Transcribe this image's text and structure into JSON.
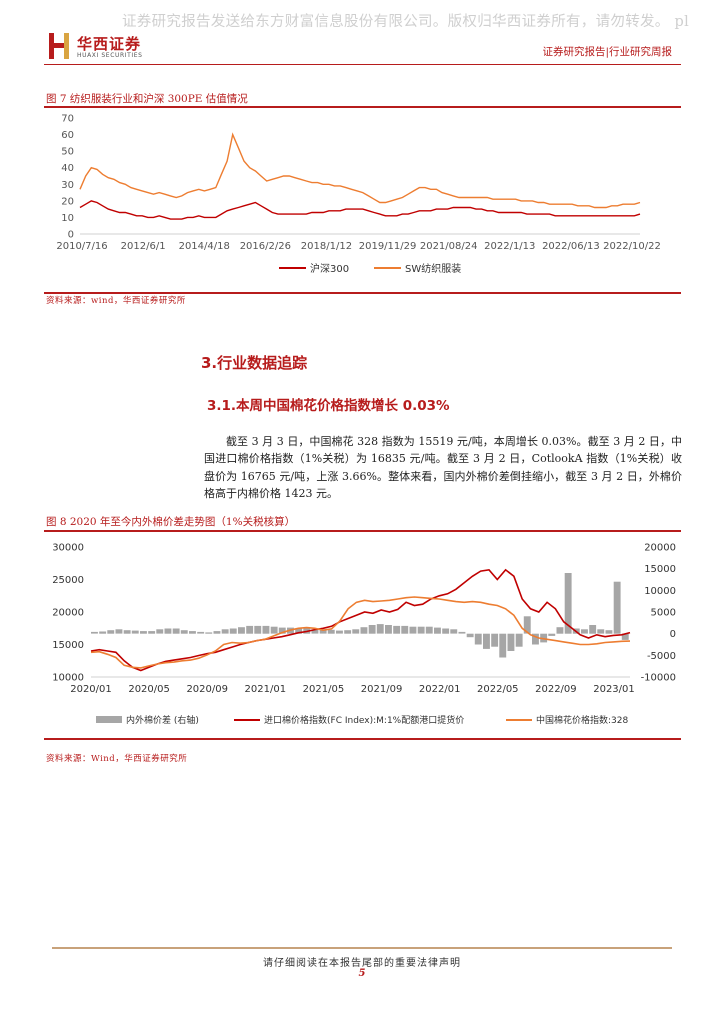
{
  "watermark": "证券研究报告发送给东方财富信息股份有限公司。版权归华西证券所有，请勿转发。 pl",
  "header": {
    "logo_cn": "华西证券",
    "logo_en": "HUAXI SECURITIES",
    "right_text": "证券研究报告|行业研究周报"
  },
  "figure7": {
    "title": "图 7  纺织服装行业和沪深 300PE 估值情况",
    "source": "资料来源：wind，华西证券研究所",
    "chart_data": {
      "type": "line",
      "title": "",
      "xlabel": "",
      "ylabel": "",
      "ylim": [
        0,
        70
      ],
      "yticks": [
        0,
        10,
        20,
        30,
        40,
        50,
        60,
        70
      ],
      "x_tick_labels": [
        "2010/7/16",
        "2012/6/1",
        "2014/4/18",
        "2016/2/26",
        "2018/1/12",
        "2019/11/29",
        "2021/08/24",
        "2022/1/13",
        "2022/06/13",
        "2022/10/22"
      ],
      "grid": false,
      "legend_placement": "bottom",
      "series": [
        {
          "name": "沪深300",
          "color": "#c00000",
          "values": [
            16,
            18,
            20,
            19,
            17,
            15,
            14,
            13,
            13,
            12,
            11,
            11,
            10,
            10,
            11,
            10,
            9,
            9,
            9,
            10,
            10,
            11,
            10,
            10,
            10,
            12,
            14,
            15,
            16,
            17,
            18,
            19,
            17,
            15,
            13,
            12,
            12,
            12,
            12,
            12,
            12,
            13,
            13,
            13,
            14,
            14,
            14,
            15,
            15,
            15,
            15,
            14,
            13,
            12,
            11,
            11,
            11,
            12,
            12,
            13,
            14,
            14,
            14,
            15,
            15,
            15,
            16,
            16,
            16,
            16,
            15,
            15,
            14,
            14,
            13,
            13,
            13,
            13,
            13,
            12,
            12,
            12,
            12,
            12,
            11,
            11,
            11,
            11,
            11,
            11,
            11,
            11,
            11,
            11,
            11,
            11,
            11,
            11,
            11,
            12
          ]
        },
        {
          "name": "SW纺织服装",
          "color": "#ed7d31",
          "values": [
            27,
            35,
            40,
            39,
            36,
            34,
            33,
            31,
            30,
            28,
            27,
            26,
            25,
            24,
            25,
            24,
            23,
            22,
            23,
            25,
            26,
            27,
            26,
            27,
            28,
            36,
            44,
            60,
            52,
            44,
            40,
            38,
            35,
            32,
            33,
            34,
            35,
            35,
            34,
            33,
            32,
            31,
            31,
            30,
            30,
            29,
            29,
            28,
            27,
            26,
            25,
            23,
            21,
            19,
            19,
            20,
            21,
            22,
            24,
            26,
            28,
            28,
            27,
            27,
            25,
            24,
            23,
            22,
            22,
            22,
            22,
            22,
            22,
            21,
            21,
            21,
            21,
            21,
            20,
            20,
            20,
            19,
            19,
            18,
            18,
            18,
            18,
            18,
            17,
            17,
            17,
            16,
            16,
            16,
            17,
            17,
            18,
            18,
            18,
            19
          ]
        }
      ]
    }
  },
  "section3": {
    "heading": "3.行业数据追踪",
    "sub_heading": "3.1.本周中国棉花价格指数增长 0.03%",
    "paragraph": "截至 3 月 3 日，中国棉花 328 指数为 15519 元/吨，本周增长 0.03%。截至 3 月 2 日，中国进口棉价格指数（1%关税）为 16835 元/吨。截至 3 月 2 日，CotlookA 指数（1%关税）收盘价为 16765 元/吨，上涨 3.66%。整体来看，国内外棉价差倒挂缩小，截至 3 月 2 日，外棉价格高于内棉价格 1423 元。"
  },
  "figure8": {
    "title": "图 8  2020 年至今内外棉价差走势图（1%关税核算）",
    "source": "资料来源：Wind，华西证券研究所",
    "chart_data": {
      "type": "line",
      "title": "",
      "xlabel": "",
      "ylabel": "",
      "ylim": [
        10000,
        30000
      ],
      "yticks": [
        10000,
        15000,
        20000,
        25000,
        30000
      ],
      "y2lim": [
        -10000,
        20000
      ],
      "y2ticks": [
        -10000,
        -5000,
        0,
        5000,
        10000,
        15000,
        20000
      ],
      "x_tick_labels": [
        "2020/01",
        "2020/05",
        "2020/09",
        "2021/01",
        "2021/05",
        "2021/09",
        "2022/01",
        "2022/05",
        "2022/09",
        "2023/01"
      ],
      "grid": false,
      "legend_placement": "bottom",
      "series": [
        {
          "name": "内外棉价差 (右轴)",
          "color": "#a6a6a6",
          "axis": "right",
          "type": "bar",
          "values": [
            400,
            500,
            800,
            1000,
            800,
            700,
            600,
            600,
            1000,
            1200,
            1200,
            800,
            600,
            400,
            300,
            600,
            1000,
            1200,
            1500,
            1800,
            1800,
            1800,
            1600,
            1400,
            1400,
            1200,
            1200,
            1000,
            1000,
            900,
            700,
            800,
            1000,
            1500,
            2000,
            2200,
            2000,
            1800,
            1800,
            1600,
            1600,
            1600,
            1400,
            1200,
            1000,
            400,
            -800,
            -2500,
            -3500,
            -3000,
            -5500,
            -4000,
            -3000,
            4000,
            -2500,
            -2000,
            -500,
            1500,
            14000,
            1200,
            1000,
            2000,
            1000,
            800,
            12000,
            -1423
          ]
        },
        {
          "name": "进口棉价格指数(FC Index):M:1%配额港口提货价",
          "color": "#c00000",
          "axis": "left",
          "values": [
            14000,
            14200,
            14000,
            13800,
            12500,
            11500,
            11000,
            11500,
            12000,
            12400,
            12600,
            12800,
            13000,
            13300,
            13600,
            13800,
            14200,
            14600,
            15000,
            15300,
            15600,
            15800,
            16000,
            16200,
            16500,
            16800,
            17000,
            17300,
            17500,
            17800,
            18500,
            19000,
            19500,
            20000,
            19800,
            20300,
            20000,
            20400,
            21500,
            21000,
            21200,
            22000,
            22500,
            22800,
            23500,
            24500,
            25500,
            26300,
            26500,
            25000,
            26500,
            25500,
            22000,
            20500,
            20000,
            21500,
            20500,
            18500,
            17500,
            16500,
            16000,
            16500,
            16200,
            16400,
            16500,
            16835
          ]
        },
        {
          "name": "中国棉花价格指数:328",
          "color": "#ed7d31",
          "axis": "left",
          "values": [
            13800,
            13900,
            13500,
            13000,
            11800,
            11500,
            11400,
            11700,
            12000,
            12200,
            12300,
            12500,
            12600,
            12900,
            13400,
            14000,
            15000,
            15300,
            15200,
            15300,
            15600,
            15800,
            16300,
            16800,
            17200,
            17500,
            17600,
            17500,
            17200,
            17400,
            18600,
            20500,
            21500,
            21800,
            21600,
            21700,
            21800,
            22000,
            22200,
            22300,
            22200,
            22100,
            22000,
            21800,
            21600,
            21500,
            21600,
            21500,
            21200,
            21000,
            20500,
            19500,
            17500,
            16500,
            16000,
            15800,
            15600,
            15400,
            15200,
            15000,
            15000,
            15100,
            15300,
            15400,
            15500,
            15519
          ]
        }
      ]
    }
  },
  "footer": {
    "disclaimer": "请仔细阅读在本报告尾部的重要法律声明",
    "page_number": "5"
  }
}
